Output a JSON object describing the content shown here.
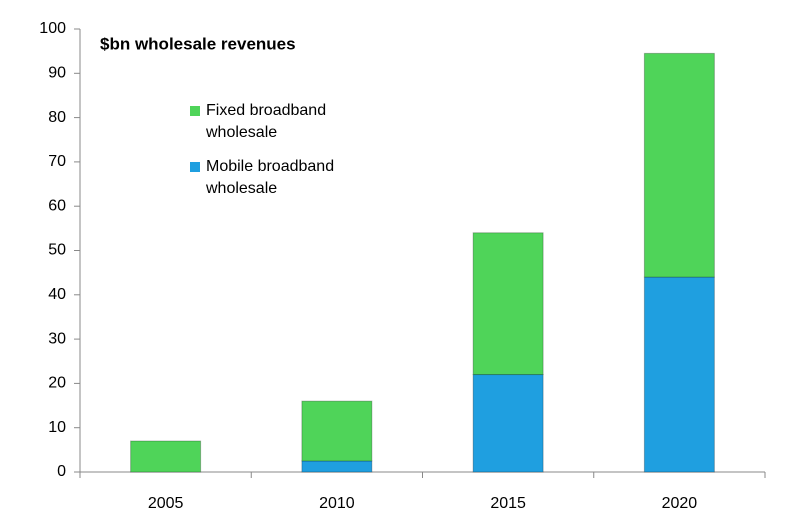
{
  "chart_data": {
    "type": "stacked_bar",
    "title": "$bn wholesale revenues",
    "categories": [
      "2005",
      "2010",
      "2015",
      "2020"
    ],
    "series": [
      {
        "name": "Mobile broadband wholesale",
        "color": "#1f9fe0",
        "values": [
          0,
          2.5,
          22,
          44
        ]
      },
      {
        "name": "Fixed broadband wholesale",
        "color": "#4fd459",
        "values": [
          7,
          13.5,
          32,
          50.5
        ]
      }
    ],
    "ylim": [
      0,
      100
    ],
    "yticks": [
      0,
      10,
      20,
      30,
      40,
      50,
      60,
      70,
      80,
      90,
      100
    ],
    "grid": false
  }
}
